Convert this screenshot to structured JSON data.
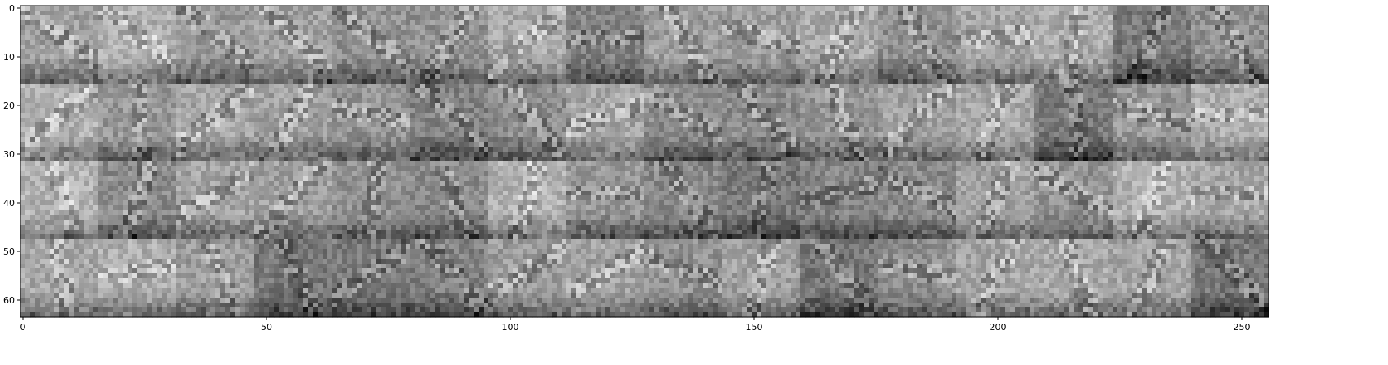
{
  "chart_data": {
    "type": "heatmap",
    "title": "",
    "xlabel": "",
    "ylabel": "",
    "colormap": "gray",
    "xlim": [
      -0.5,
      255.5
    ],
    "ylim": [
      63.5,
      -0.5
    ],
    "x_ticks": [
      0,
      50,
      100,
      150,
      200,
      250
    ],
    "y_ticks": [
      0,
      10,
      20,
      30,
      40,
      50,
      60
    ],
    "x_tick_labels": [
      "0",
      "50",
      "100",
      "150",
      "200",
      "250"
    ],
    "y_tick_labels": [
      "0",
      "10",
      "20",
      "30",
      "40",
      "50",
      "60"
    ],
    "grid": false,
    "tiles": {
      "rows": 4,
      "cols": 16,
      "tile_width": 16,
      "tile_height": 16,
      "description_key": "feature-map-grid"
    }
  }
}
